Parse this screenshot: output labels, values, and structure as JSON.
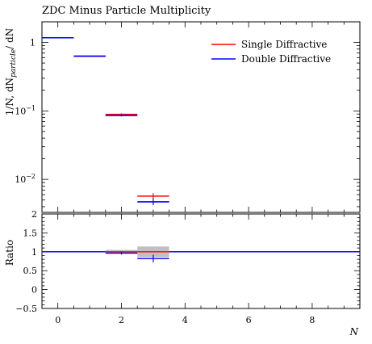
{
  "chart_data": {
    "type": "line",
    "title": "ZDC Minus Particle Multiplicity",
    "xlabel": "N",
    "ylabel_main": "1/N, dN",
    "ylabel_sub": "particle",
    "ylabel_tail": "/ dN",
    "ylabel_ratio": "Ratio",
    "xlim": [
      -0.5,
      9.5
    ],
    "ylim_main": [
      0.0033,
      2.0
    ],
    "ylog_main": true,
    "ylim_ratio": [
      -0.5,
      2.0
    ],
    "x_ticks": [
      {
        "value": 0,
        "label": "0"
      },
      {
        "value": 2,
        "label": "2"
      },
      {
        "value": 4,
        "label": "4"
      },
      {
        "value": 6,
        "label": "6"
      },
      {
        "value": 8,
        "label": "8"
      }
    ],
    "y_ticks_main": [
      {
        "value": 1,
        "label": "1"
      },
      {
        "value": 0.1,
        "label": "10",
        "exp": "−1"
      },
      {
        "value": 0.01,
        "label": "10",
        "exp": "−2"
      }
    ],
    "y_ticks_ratio": [
      {
        "value": 2,
        "label": "2"
      },
      {
        "value": 1.5,
        "label": "1.5"
      },
      {
        "value": 1,
        "label": "1"
      },
      {
        "value": 0.5,
        "label": "0.5"
      },
      {
        "value": 0,
        "label": "0"
      },
      {
        "value": -0.5,
        "label": "−0.5"
      }
    ],
    "legend_position": "top-right",
    "series": [
      {
        "name": "Single Diffractive",
        "color": "#ff0000",
        "bins": [
          {
            "x": [
              -0.5,
              0.5
            ],
            "y": 1.17,
            "err": 0
          },
          {
            "x": [
              0.5,
              1.5
            ],
            "y": 0.63,
            "err": 0
          },
          {
            "x": [
              1.5,
              2.5
            ],
            "y": 0.089,
            "err": 0.003
          },
          {
            "x": [
              2.5,
              3.5
            ],
            "y": 0.0057,
            "err": 0.0006
          }
        ]
      },
      {
        "name": "Double Diffractive",
        "color": "#0000ff",
        "bins": [
          {
            "x": [
              -0.5,
              0.5
            ],
            "y": 1.17,
            "err": 0
          },
          {
            "x": [
              0.5,
              1.5
            ],
            "y": 0.63,
            "err": 0
          },
          {
            "x": [
              1.5,
              2.5
            ],
            "y": 0.086,
            "err": 0.003
          },
          {
            "x": [
              2.5,
              3.5
            ],
            "y": 0.0047,
            "err": 0.0005
          }
        ]
      }
    ],
    "ratio": {
      "reference_band_color": "#c0c0c0",
      "bins": [
        {
          "x": [
            -0.5,
            0.5
          ],
          "band": 0.01,
          "single": 1.0,
          "double": 1.0,
          "derr": 0
        },
        {
          "x": [
            0.5,
            1.5
          ],
          "band": 0.01,
          "single": 1.0,
          "double": 1.0,
          "derr": 0
        },
        {
          "x": [
            1.5,
            2.5
          ],
          "band": 0.05,
          "single": 1.0,
          "double": 0.965,
          "derr": 0.04
        },
        {
          "x": [
            2.5,
            3.5
          ],
          "band": 0.14,
          "single": 1.0,
          "double": 0.82,
          "derr": 0.1
        },
        {
          "x": [
            3.5,
            9.5
          ],
          "band": 0,
          "single": 1.0,
          "double": 1.0,
          "derr": 0
        }
      ]
    }
  }
}
